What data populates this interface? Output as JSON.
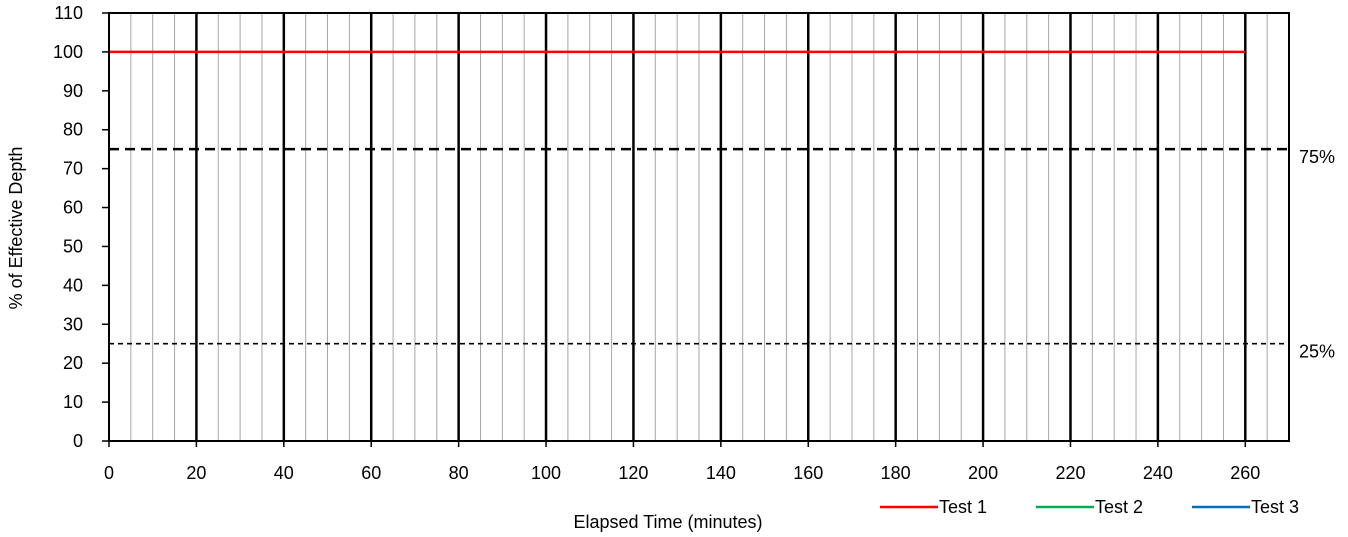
{
  "chart_data": {
    "type": "line",
    "title": "",
    "xlabel": "Elapsed Time (minutes)",
    "ylabel": "% of Effective Depth",
    "xlim": [
      0,
      270
    ],
    "ylim": [
      0,
      110
    ],
    "x_ticks": [
      0,
      20,
      40,
      60,
      80,
      100,
      120,
      140,
      160,
      180,
      200,
      220,
      240,
      260
    ],
    "y_ticks": [
      0,
      10,
      20,
      30,
      40,
      50,
      60,
      70,
      80,
      90,
      100,
      110
    ],
    "x_minor_step": 5,
    "grid": true,
    "legend_placement": "bottom-right",
    "series": [
      {
        "name": "Test 1",
        "color": "#ff0000",
        "x": [
          0,
          260
        ],
        "y": [
          100,
          100
        ]
      },
      {
        "name": "Test 2",
        "color": "#00b050",
        "x": [],
        "y": []
      },
      {
        "name": "Test 3",
        "color": "#0070c0",
        "x": [],
        "y": []
      }
    ],
    "reference_lines": [
      {
        "label": "75%",
        "y": 75,
        "style": "dashed-bold"
      },
      {
        "label": "25%",
        "y": 25,
        "style": "dashed-thin"
      }
    ]
  }
}
